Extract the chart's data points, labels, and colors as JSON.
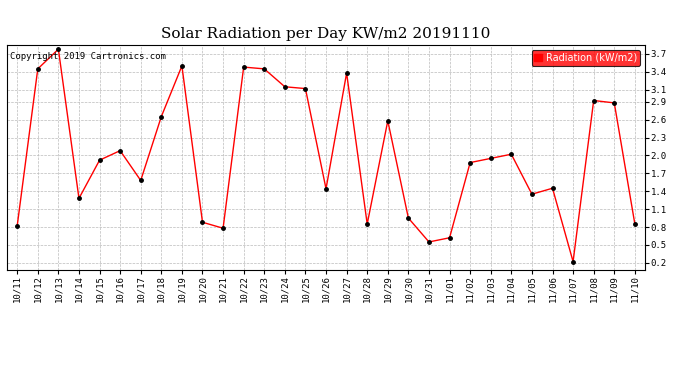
{
  "title": "Solar Radiation per Day KW/m2 20191110",
  "copyright": "Copyright 2019 Cartronics.com",
  "legend_label": "Radiation (kW/m2)",
  "dates": [
    "10/11",
    "10/12",
    "10/13",
    "10/14",
    "10/15",
    "10/16",
    "10/17",
    "10/18",
    "10/19",
    "10/20",
    "10/21",
    "10/22",
    "10/23",
    "10/24",
    "10/25",
    "10/26",
    "10/27",
    "10/28",
    "10/29",
    "10/30",
    "10/31",
    "11/01",
    "11/02",
    "11/03",
    "11/04",
    "11/05",
    "11/06",
    "11/07",
    "11/08",
    "11/09",
    "11/10"
  ],
  "values": [
    0.82,
    3.45,
    3.78,
    1.28,
    1.92,
    2.08,
    1.58,
    2.65,
    3.5,
    0.88,
    0.78,
    3.48,
    3.45,
    3.15,
    3.12,
    1.44,
    3.38,
    0.85,
    2.58,
    0.95,
    0.55,
    0.62,
    1.88,
    1.95,
    2.02,
    1.35,
    1.45,
    0.22,
    2.92,
    2.88,
    0.85
  ],
  "line_color": "red",
  "marker_color": "black",
  "grid_color": "#bbbbbb",
  "background_color": "white",
  "ylim": [
    0.08,
    3.85
  ],
  "yticks": [
    0.2,
    0.5,
    0.8,
    1.1,
    1.4,
    1.7,
    2.0,
    2.3,
    2.6,
    2.9,
    3.1,
    3.4,
    3.7
  ],
  "title_fontsize": 11,
  "copyright_fontsize": 6.5,
  "legend_fontsize": 7,
  "tick_fontsize": 6.5
}
